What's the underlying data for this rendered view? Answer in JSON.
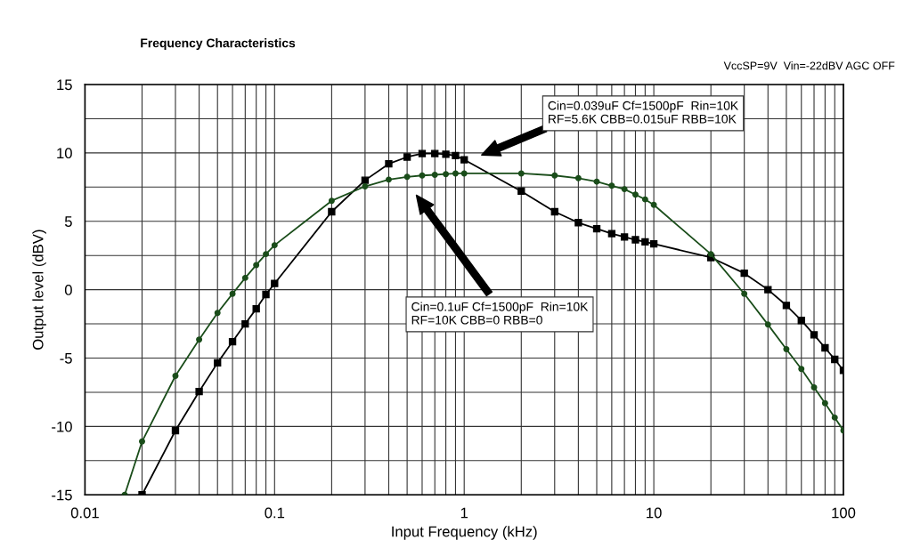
{
  "chart_data": {
    "type": "line",
    "title": "Frequency Characteristics",
    "subtitle": "VccSP=9V  Vin=-22dBV AGC OFF",
    "xlabel": "Input Frequency (kHz)",
    "ylabel": "Output level (dBV)",
    "log": "x",
    "grid": true,
    "legend": false,
    "line_style": "solid",
    "xlim": [
      0.01,
      100
    ],
    "xticks": [
      {
        "value": 0.01,
        "label": "0.01"
      },
      {
        "value": 0.02,
        "label": null
      },
      {
        "value": 0.03,
        "label": null
      },
      {
        "value": 0.04,
        "label": null
      },
      {
        "value": 0.05,
        "label": null
      },
      {
        "value": 0.06,
        "label": null
      },
      {
        "value": 0.07,
        "label": null
      },
      {
        "value": 0.08,
        "label": null
      },
      {
        "value": 0.09,
        "label": null
      },
      {
        "value": 0.1,
        "label": "0.1"
      },
      {
        "value": 0.2,
        "label": null
      },
      {
        "value": 0.3,
        "label": null
      },
      {
        "value": 0.4,
        "label": null
      },
      {
        "value": 0.5,
        "label": null
      },
      {
        "value": 0.6,
        "label": null
      },
      {
        "value": 0.7,
        "label": null
      },
      {
        "value": 0.8,
        "label": null
      },
      {
        "value": 0.9,
        "label": null
      },
      1,
      {
        "value": 2,
        "label": null
      },
      {
        "value": 3,
        "label": null
      },
      {
        "value": 4,
        "label": null
      },
      {
        "value": 5,
        "label": null
      },
      {
        "value": 6,
        "label": null
      },
      {
        "value": 7,
        "label": null
      },
      {
        "value": 8,
        "label": null
      },
      {
        "value": 9,
        "label": null
      },
      10,
      {
        "value": 20,
        "label": null
      },
      {
        "value": 30,
        "label": null
      },
      {
        "value": 40,
        "label": null
      },
      {
        "value": 50,
        "label": null
      },
      {
        "value": 60,
        "label": null
      },
      {
        "value": 70,
        "label": null
      },
      {
        "value": 80,
        "label": null
      },
      {
        "value": 90,
        "label": null
      },
      100
    ],
    "ylim": [
      -15,
      15
    ],
    "yticks": [
      -15,
      {
        "value": -12.5,
        "label": null
      },
      -10,
      {
        "value": -7.5,
        "label": null
      },
      -5,
      {
        "value": -2.5,
        "label": null
      },
      0,
      {
        "value": 2.5,
        "label": null
      },
      5,
      {
        "value": 7.5,
        "label": null
      },
      10,
      {
        "value": 12.5,
        "label": null
      },
      15
    ],
    "series": [
      {
        "color": "#1a4d1a",
        "marker": "circle",
        "x": [
          0.0162,
          0.02,
          0.03,
          0.04,
          0.05,
          0.06,
          0.07,
          0.08,
          0.09,
          0.1,
          0.2,
          0.3,
          0.4,
          0.5,
          0.6,
          0.7,
          0.8,
          0.9,
          1,
          2,
          3,
          4,
          5,
          6,
          7,
          8,
          9,
          10,
          20,
          30,
          40,
          50,
          60,
          70,
          80,
          90,
          100
        ],
        "values": [
          -15,
          -11.1,
          -6.3,
          -3.65,
          -1.7,
          -0.3,
          0.86,
          1.8,
          2.6,
          3.25,
          6.5,
          7.55,
          8.05,
          8.25,
          8.35,
          8.4,
          8.45,
          8.5,
          8.5,
          8.5,
          8.35,
          8.15,
          7.9,
          7.6,
          7.35,
          6.95,
          6.6,
          6.2,
          2.6,
          -0.3,
          -2.55,
          -4.35,
          -5.8,
          -7.15,
          -8.3,
          -9.35,
          -10.3
        ]
      },
      {
        "color": "#000000",
        "marker": "square",
        "x": [
          0.02,
          0.03,
          0.04,
          0.05,
          0.06,
          0.07,
          0.08,
          0.09,
          0.1,
          0.2,
          0.3,
          0.4,
          0.5,
          0.6,
          0.7,
          0.8,
          0.9,
          1,
          2,
          3,
          4,
          5,
          6,
          7,
          8,
          9,
          10,
          20,
          30,
          40,
          50,
          60,
          70,
          80,
          90,
          100
        ],
        "values": [
          -15,
          -10.3,
          -7.45,
          -5.35,
          -3.8,
          -2.5,
          -1.4,
          -0.35,
          0.45,
          5.7,
          8.0,
          9.2,
          9.7,
          9.95,
          9.95,
          9.9,
          9.8,
          9.5,
          7.2,
          5.7,
          4.9,
          4.45,
          4.1,
          3.85,
          3.65,
          3.5,
          3.35,
          2.35,
          1.2,
          0.0,
          -1.15,
          -2.25,
          -3.3,
          -4.25,
          -5.1,
          -5.9
        ]
      }
    ],
    "annotations": [
      "Cin=0.039uF Cf=1500pF  Rin=10K\nRF=5.6K CBB=0.015uF RBB=10K",
      "Cin=0.1uF Cf=1500pF  Rin=10K\nRF=10K CBB=0 RBB=0"
    ]
  }
}
